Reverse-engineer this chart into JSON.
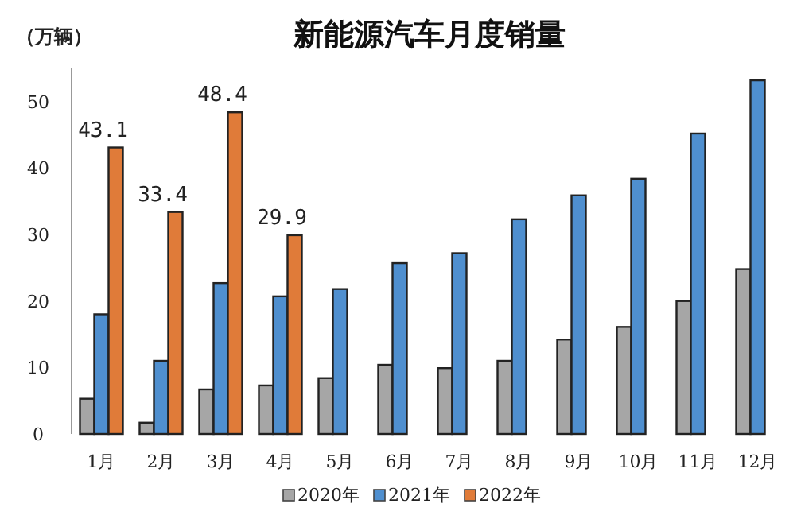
{
  "chart_data": {
    "type": "bar",
    "title": "新能源汽车月度销量",
    "ylabel": "（万辆）",
    "categories": [
      "1月",
      "2月",
      "3月",
      "4月",
      "5月",
      "6月",
      "7月",
      "8月",
      "9月",
      "10月",
      "11月",
      "12月"
    ],
    "series": [
      {
        "name": "2020年",
        "color": "#a6a6a6",
        "values": [
          5.3,
          1.7,
          6.7,
          7.3,
          8.4,
          10.4,
          9.9,
          11.0,
          14.2,
          16.1,
          20.0,
          24.8
        ]
      },
      {
        "name": "2021年",
        "color": "#4f8fcf",
        "values": [
          18.0,
          11.0,
          22.7,
          20.7,
          21.8,
          25.7,
          27.2,
          32.3,
          35.9,
          38.4,
          45.2,
          53.2
        ]
      },
      {
        "name": "2022年",
        "color": "#e07b39",
        "values": [
          43.1,
          33.4,
          48.4,
          29.9,
          null,
          null,
          null,
          null,
          null,
          null,
          null,
          null
        ],
        "value_labels": [
          "43.1",
          "33.4",
          "48.4",
          "29.9",
          null,
          null,
          null,
          null,
          null,
          null,
          null,
          null
        ]
      }
    ],
    "ylim": [
      0,
      55
    ],
    "yticks": [
      0,
      10,
      20,
      30,
      40,
      50
    ],
    "grid": false,
    "legend": "bottom"
  }
}
